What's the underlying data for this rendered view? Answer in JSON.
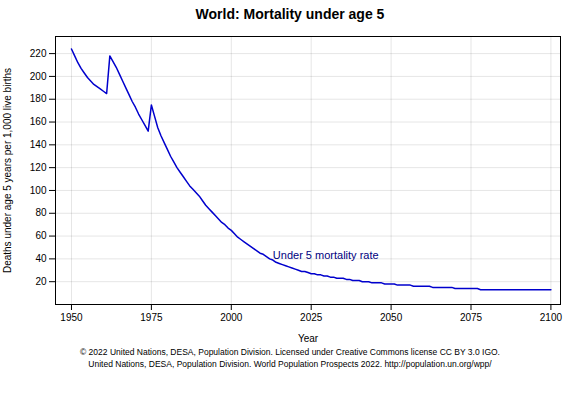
{
  "chart_data": {
    "type": "line",
    "title": "World: Mortality under age 5",
    "xlabel": "Year",
    "ylabel": "Deaths under age 5 years per 1,000 live births",
    "caption": [
      "© 2022 United Nations, DESA, Population Division. Licensed under Creative Commons license CC BY 3.0 IGO.",
      "United Nations, DESA, Population Division. World Population Prospects 2022. http://population.un.org/wpp/"
    ],
    "annotations": [
      {
        "text": "Under 5 mortality rate",
        "x": 2013,
        "y": 43,
        "color": "#000080"
      }
    ],
    "x": [
      1950,
      1951,
      1952,
      1953,
      1954,
      1955,
      1956,
      1957,
      1958,
      1959,
      1960,
      1961,
      1962,
      1963,
      1964,
      1965,
      1966,
      1967,
      1968,
      1969,
      1970,
      1971,
      1972,
      1973,
      1974,
      1975,
      1976,
      1977,
      1978,
      1979,
      1980,
      1981,
      1982,
      1983,
      1984,
      1985,
      1986,
      1987,
      1988,
      1989,
      1990,
      1991,
      1992,
      1993,
      1994,
      1995,
      1996,
      1997,
      1998,
      1999,
      2000,
      2001,
      2002,
      2003,
      2004,
      2005,
      2006,
      2007,
      2008,
      2009,
      2010,
      2011,
      2012,
      2013,
      2014,
      2015,
      2016,
      2017,
      2018,
      2019,
      2020,
      2021,
      2022,
      2023,
      2024,
      2025,
      2026,
      2027,
      2028,
      2029,
      2030,
      2031,
      2032,
      2033,
      2034,
      2035,
      2036,
      2037,
      2038,
      2039,
      2040,
      2041,
      2042,
      2043,
      2044,
      2045,
      2046,
      2047,
      2048,
      2049,
      2050,
      2051,
      2052,
      2053,
      2054,
      2055,
      2056,
      2057,
      2058,
      2059,
      2060,
      2061,
      2062,
      2063,
      2064,
      2065,
      2066,
      2067,
      2068,
      2069,
      2070,
      2071,
      2072,
      2073,
      2074,
      2075,
      2076,
      2077,
      2078,
      2079,
      2080,
      2081,
      2082,
      2083,
      2084,
      2085,
      2086,
      2087,
      2088,
      2089,
      2090,
      2091,
      2092,
      2093,
      2094,
      2095,
      2096,
      2097,
      2098,
      2099,
      2100
    ],
    "values": [
      224,
      218,
      212,
      207,
      203,
      199,
      196,
      193,
      191,
      189,
      187,
      185,
      218,
      213,
      208,
      202,
      196,
      190,
      184,
      178,
      173,
      167,
      162,
      157,
      152,
      175,
      165,
      155,
      148,
      142,
      136,
      130,
      125,
      120,
      116,
      112,
      108,
      104,
      101,
      98,
      95,
      91,
      87,
      84,
      81,
      78,
      75,
      72,
      70,
      67,
      65,
      62,
      59,
      57,
      55,
      53,
      51,
      49,
      47,
      45,
      44,
      42,
      40,
      39,
      37,
      36,
      35,
      34,
      33,
      32,
      31,
      30,
      29,
      29,
      28,
      27,
      27,
      26,
      26,
      25,
      25,
      24,
      24,
      23,
      23,
      23,
      22,
      22,
      21,
      21,
      21,
      20,
      20,
      20,
      19,
      19,
      19,
      19,
      18,
      18,
      18,
      18,
      17,
      17,
      17,
      17,
      17,
      16,
      16,
      16,
      16,
      16,
      16,
      15,
      15,
      15,
      15,
      15,
      15,
      15,
      14,
      14,
      14,
      14,
      14,
      14,
      14,
      14,
      13,
      13,
      13,
      13,
      13,
      13,
      13,
      13,
      13,
      13,
      13,
      13,
      13,
      13,
      13,
      13,
      13,
      13,
      13,
      13,
      13,
      13,
      13
    ],
    "color": "#0000CD",
    "xlim": [
      1945,
      2103
    ],
    "ylim": [
      0,
      235
    ],
    "xticks": [
      1950,
      1975,
      2000,
      2025,
      2050,
      2075,
      2100
    ],
    "yticks": [
      20,
      40,
      60,
      80,
      100,
      120,
      140,
      160,
      180,
      200,
      220
    ],
    "grid": true
  }
}
